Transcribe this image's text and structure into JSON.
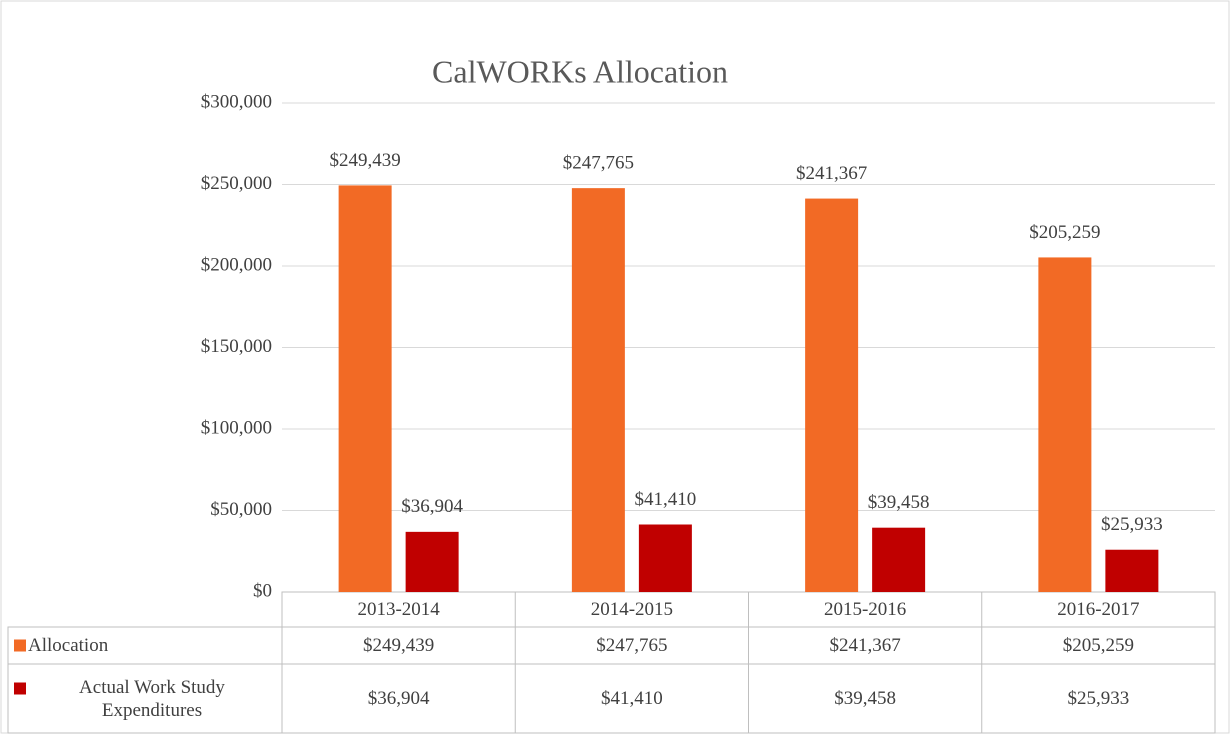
{
  "chart_data": {
    "type": "bar",
    "title": "CalWORKs Allocation",
    "categories": [
      "2013-2014",
      "2014-2015",
      "2015-2016",
      "2016-2017"
    ],
    "series": [
      {
        "name": "Allocation",
        "color": "#f26a25",
        "values": [
          249439,
          247765,
          241367,
          205259
        ],
        "value_labels": [
          "$249,439",
          "$247,765",
          "$241,367",
          "$205,259"
        ]
      },
      {
        "name": "Actual Work Study Expenditures",
        "color": "#c00000",
        "values": [
          36904,
          41410,
          39458,
          25933
        ],
        "value_labels": [
          "$36,904",
          "$41,410",
          "$39,458",
          "$25,933"
        ]
      }
    ],
    "ylim": [
      0,
      300000
    ],
    "yticks": [
      {
        "value": 0,
        "label": "$0"
      },
      {
        "value": 50000,
        "label": "$50,000"
      },
      {
        "value": 100000,
        "label": "$100,000"
      },
      {
        "value": 150000,
        "label": "$150,000"
      },
      {
        "value": 200000,
        "label": "$200,000"
      },
      {
        "value": 250000,
        "label": "$250,000"
      },
      {
        "value": 300000,
        "label": "$300,000"
      }
    ],
    "grid": true
  }
}
